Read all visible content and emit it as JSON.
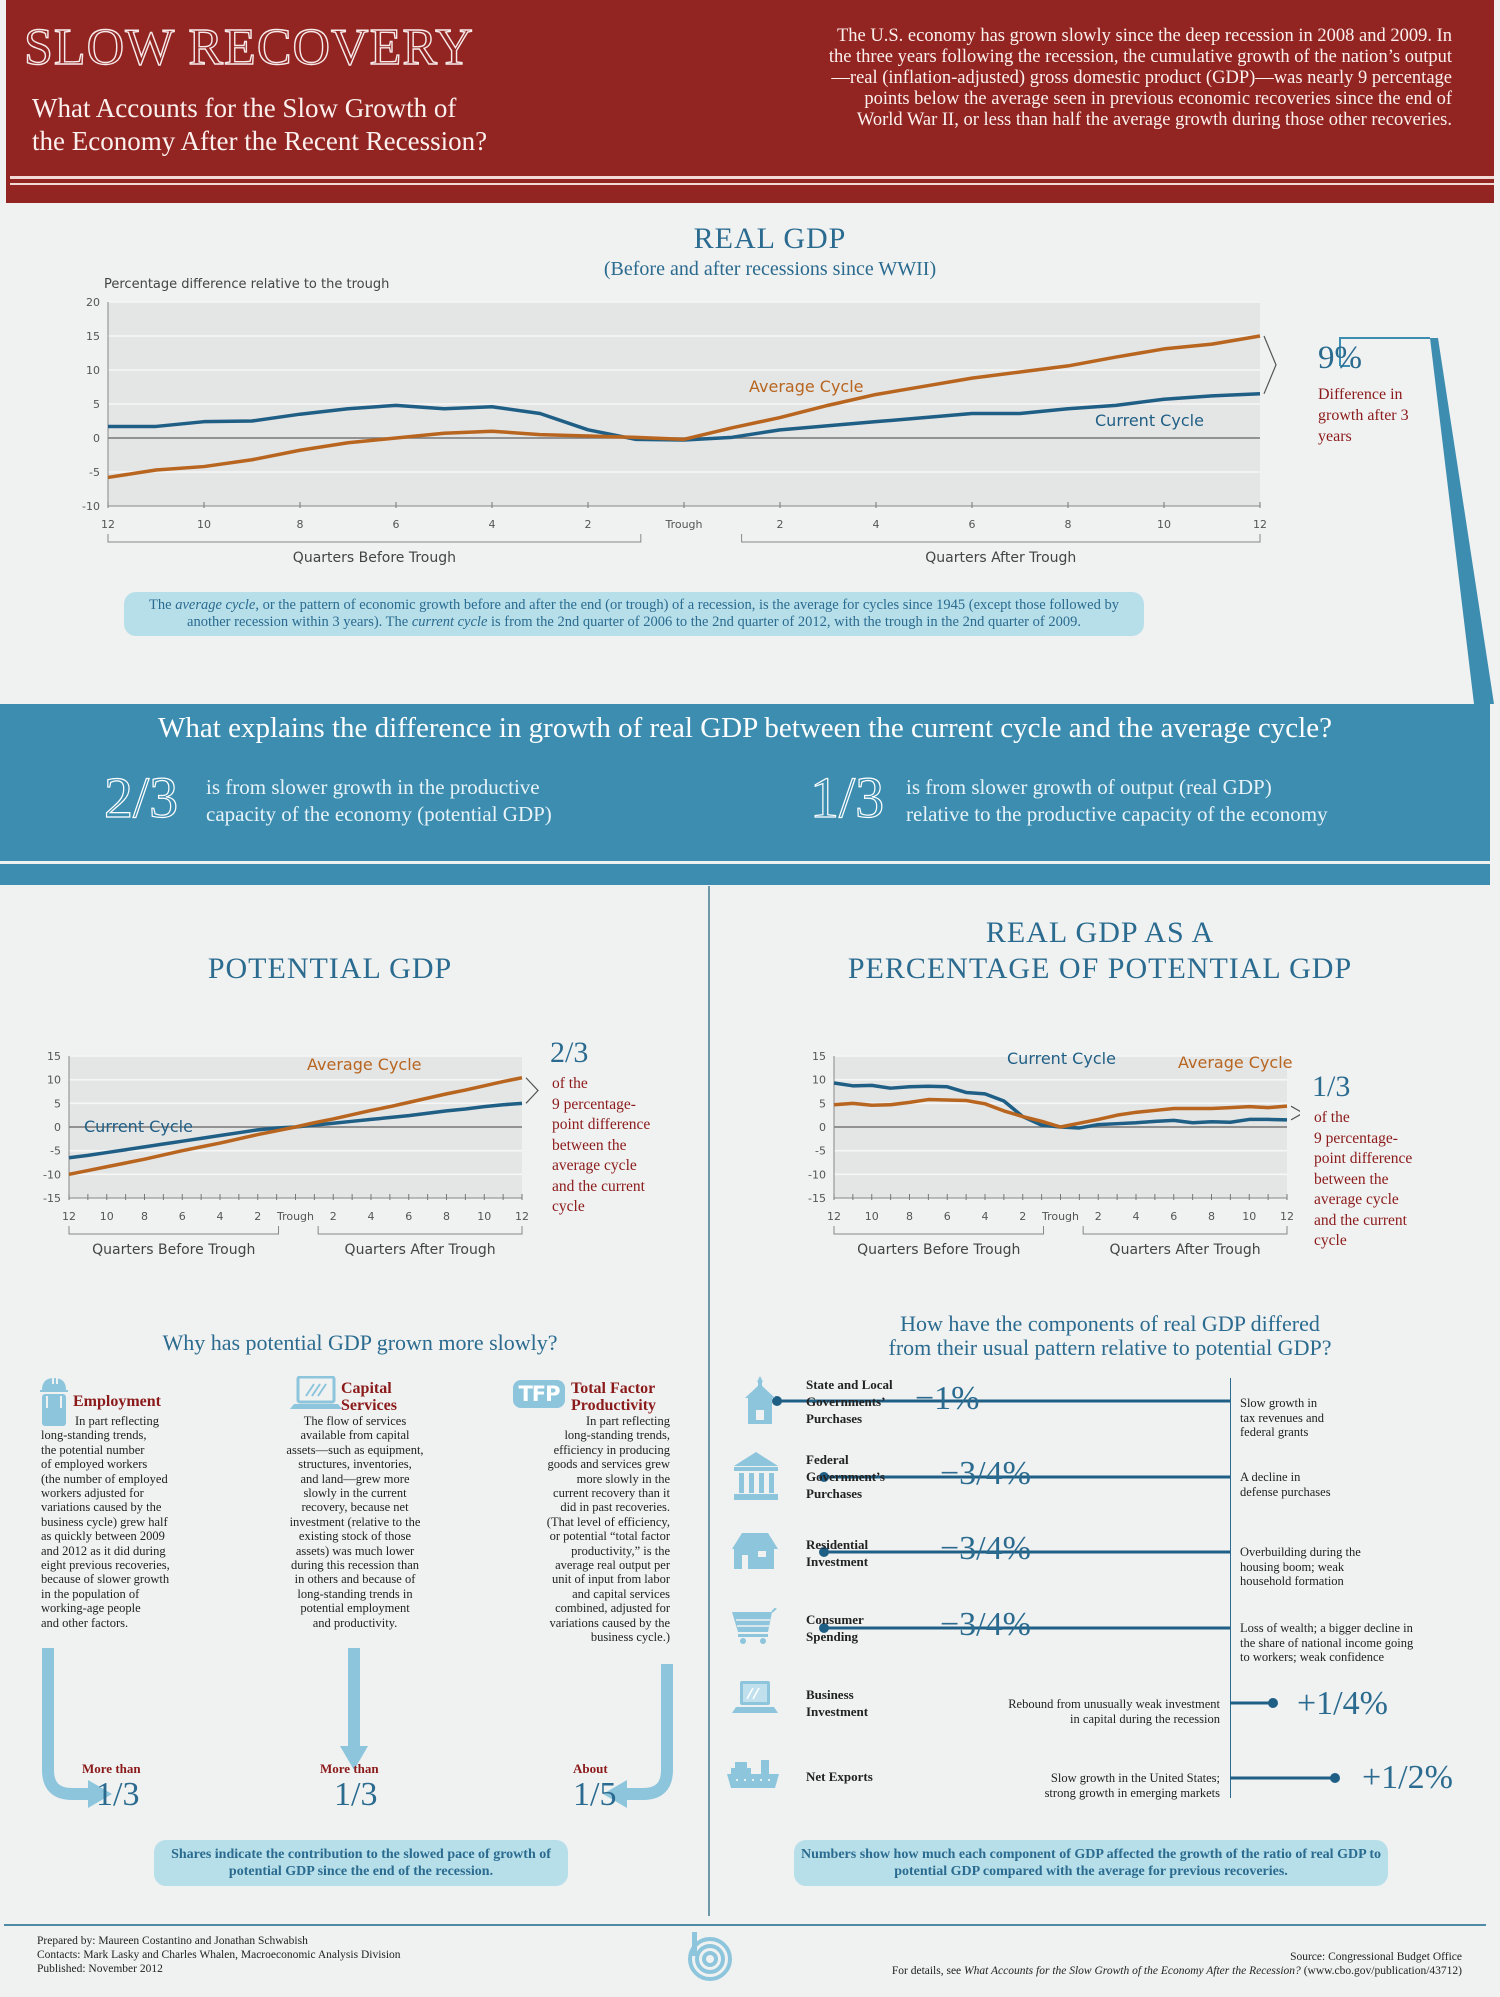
{
  "header": {
    "title": "SLOW RECOVERY",
    "subtitle_line1": "What Accounts for the Slow Growth of",
    "subtitle_line2": "the Economy After the Recent Recession?",
    "intro": "The U.S. economy has grown slowly since the deep recession in 2008 and 2009. In the three years following the recession, the cumulative growth of the nation’s output—real (inflation-adjusted) gross domestic product (GDP)—was nearly 9 percentage points below the average seen in previous economic recoveries since the end of World War II, or less than half the average growth during those other recoveries.",
    "colors": {
      "header_bg": "#922522",
      "accent_blue": "#3d8db0",
      "title_blue": "#2a6b8f",
      "red_text": "#8b1a1a"
    }
  },
  "real_gdp_section": {
    "title": "REAL GDP",
    "subtitle": "(Before and after recessions since WWII)",
    "callout_value": "9%",
    "callout_text": "Difference in growth after 3 years",
    "note_part1": "The ",
    "note_em1": "average cycle",
    "note_part2": ", or the pattern of economic growth before and after the end (or trough) of a recession, is the average for cycles since 1945 (except those followed by another recession within 3 years). The ",
    "note_em2": "current cycle",
    "note_part3": " is from the 2nd quarter of 2006 to the 2nd quarter of 2012, with the trough in the 2nd quarter of 2009."
  },
  "band": {
    "question": "What explains the difference in growth of real GDP between the current cycle and the average cycle?",
    "left_fraction": "2/3",
    "left_text_line1": "is from slower growth in the productive",
    "left_text_line2": "capacity of the economy (potential GDP)",
    "right_fraction": "1/3",
    "right_text_line1": "is from slower growth of output (real GDP)",
    "right_text_line2": "relative to the productive capacity of the economy"
  },
  "potential_section": {
    "title": "POTENTIAL GDP",
    "callout_value": "2/3",
    "callout_text_lines": [
      "of the",
      "9 percentage-",
      "point difference",
      "between the",
      "average cycle",
      "and the current",
      "cycle"
    ]
  },
  "ratio_section": {
    "title_line1": "REAL GDP AS A",
    "title_line2": "PERCENTAGE OF POTENTIAL GDP",
    "callout_value": "1/3",
    "callout_text_lines": [
      "of the",
      "9 percentage-",
      "point difference",
      "between the",
      "average cycle",
      "and the current",
      "cycle"
    ]
  },
  "why_section": {
    "title": "Why has potential GDP grown more slowly?",
    "columns": [
      {
        "icon": "worker-icon",
        "heading_lines": [
          "Employment"
        ],
        "body_lines": [
          "In part reflecting",
          "long-standing trends,",
          "the potential number",
          "of employed workers",
          "(the number of employed",
          "workers adjusted for",
          "variations caused by the",
          "business cycle) grew half",
          "as quickly between 2009",
          "and 2012 as it did during",
          "eight previous recoveries,",
          "because of slower growth",
          "in the population of",
          "working-age people",
          "and other factors."
        ],
        "share_prefix": "More than",
        "share_value": "1/3"
      },
      {
        "icon": "laptop-icon",
        "heading_lines": [
          "Capital",
          "Services"
        ],
        "body_lines": [
          "The flow of services",
          "available from capital",
          "assets—such as equipment,",
          "structures, inventories,",
          "and land—grew more",
          "slowly in the current",
          "recovery, because net",
          "investment (relative to the",
          "existing stock of those",
          "assets) was much lower",
          "during this recession than",
          "in others and because of",
          "long-standing trends in",
          "potential employment",
          "and productivity."
        ],
        "share_prefix": "More than",
        "share_value": "1/3"
      },
      {
        "icon": "tfp-icon",
        "icon_text": "TFP",
        "heading_lines": [
          "Total Factor",
          "Productivity"
        ],
        "body_lines": [
          "In part reflecting",
          "long-standing trends,",
          "efficiency in producing",
          "goods and services grew",
          "more slowly in the",
          "current recovery than it",
          "did in past recoveries.",
          "(That level of efficiency,",
          "or potential “total factor",
          "productivity,” is the",
          "average real output per",
          "unit of input from labor",
          "and capital services",
          "combined, adjusted for",
          "variations caused by the",
          "business cycle.)"
        ],
        "share_prefix": "About",
        "share_value": "1/5"
      }
    ],
    "note": "Shares indicate the contribution to the slowed pace of growth of potential GDP since the end of the recession."
  },
  "components_section": {
    "title_line1": "How have the components of real GDP differed",
    "title_line2": "from their usual pattern relative to potential GDP?",
    "items": [
      {
        "icon": "schoolhouse-icon",
        "label_lines": [
          "State and Local",
          "Governments’",
          "Purchases"
        ],
        "value": "−1%",
        "numeric": -1.0,
        "desc_lines": [
          "Slow growth in",
          "tax revenues and",
          "federal grants"
        ]
      },
      {
        "icon": "capitol-icon",
        "label_lines": [
          "Federal",
          "Government’s",
          "Purchases"
        ],
        "value": "−3/4%",
        "numeric": -0.75,
        "desc_lines": [
          "A decline in",
          "defense purchases"
        ]
      },
      {
        "icon": "house-icon",
        "label_lines": [
          "Residential",
          "Investment"
        ],
        "value": "−3/4%",
        "numeric": -0.75,
        "desc_lines": [
          "Overbuilding during the",
          "housing boom; weak",
          "household formation"
        ]
      },
      {
        "icon": "cart-icon",
        "label_lines": [
          "Consumer",
          "Spending"
        ],
        "value": "−3/4%",
        "numeric": -0.75,
        "desc_lines": [
          "Loss of wealth; a bigger decline in",
          "the share of national income going",
          "to workers; weak confidence"
        ]
      },
      {
        "icon": "laptop-icon",
        "label_lines": [
          "Business",
          "Investment"
        ],
        "value": "+1/4%",
        "numeric": 0.25,
        "desc_lines": [
          "Rebound from unusually weak investment",
          "in capital during the recession"
        ]
      },
      {
        "icon": "ship-icon",
        "label_lines": [
          "Net Exports"
        ],
        "value": "+1/2%",
        "numeric": 0.5,
        "desc_lines": [
          "Slow growth in the United States;",
          "strong growth in emerging markets"
        ]
      }
    ],
    "note": "Numbers show how much each component of GDP affected the growth of the ratio of real GDP to potential GDP compared with the average for previous recoveries."
  },
  "footer": {
    "prepared": "Prepared by: Maureen Costantino and Jonathan Schwabish",
    "contacts": "Contacts: Mark Lasky and Charles Whalen, Macroeconomic Analysis Division",
    "published": "Published: November 2012",
    "source": "Source: Congressional Budget Office",
    "details_prefix": "For details, see ",
    "details_title": "What Accounts for the Slow Growth of the Economy After the Recession?",
    "details_suffix": " (www.cbo.gov/publication/43712)"
  },
  "chart_data": [
    {
      "type": "line",
      "title": "REAL GDP",
      "ylabel": "Percentage difference relative to the trough",
      "xlabel_left": "Quarters Before Trough",
      "xlabel_right": "Quarters After Trough",
      "x": [
        -12,
        -11,
        -10,
        -9,
        -8,
        -7,
        -6,
        -5,
        -4,
        -3,
        -2,
        -1,
        0,
        1,
        2,
        3,
        4,
        5,
        6,
        7,
        8,
        9,
        10,
        11,
        12
      ],
      "x_tick_values": [
        -12,
        -10,
        -8,
        -6,
        -4,
        -2,
        0,
        2,
        4,
        6,
        8,
        10,
        12
      ],
      "x_tick_labels": [
        "12",
        "10",
        "8",
        "6",
        "4",
        "2",
        "Trough",
        "2",
        "4",
        "6",
        "8",
        "10",
        "12"
      ],
      "y_ticks": [
        20,
        15,
        10,
        5,
        0,
        -5,
        -10
      ],
      "ylim": [
        -10,
        20
      ],
      "grid": true,
      "series": [
        {
          "name": "Current Cycle",
          "color": "#1f5f86",
          "values": [
            1.7,
            1.7,
            2.4,
            2.5,
            3.5,
            4.3,
            4.8,
            4.3,
            4.6,
            3.6,
            1.2,
            -0.2,
            -0.3,
            0.1,
            1.2,
            1.8,
            2.4,
            3.0,
            3.6,
            3.6,
            4.3,
            4.8,
            5.7,
            6.2,
            6.5
          ]
        },
        {
          "name": "Average Cycle",
          "color": "#b8651f",
          "values": [
            -5.8,
            -4.7,
            -4.2,
            -3.2,
            -1.8,
            -0.7,
            0.0,
            0.7,
            1.0,
            0.5,
            0.3,
            0.1,
            -0.2,
            1.5,
            3.0,
            4.8,
            6.4,
            7.6,
            8.8,
            9.7,
            10.6,
            11.9,
            13.1,
            13.8,
            15.0
          ]
        }
      ],
      "annotation": "9%"
    },
    {
      "type": "line",
      "title": "POTENTIAL GDP",
      "xlabel_left": "Quarters Before Trough",
      "xlabel_right": "Quarters After Trough",
      "x": [
        -12,
        -11,
        -10,
        -9,
        -8,
        -7,
        -6,
        -5,
        -4,
        -3,
        -2,
        -1,
        0,
        1,
        2,
        3,
        4,
        5,
        6,
        7,
        8,
        9,
        10,
        11,
        12
      ],
      "x_tick_values": [
        -12,
        -10,
        -8,
        -6,
        -4,
        -2,
        0,
        2,
        4,
        6,
        8,
        10,
        12
      ],
      "x_tick_labels": [
        "12",
        "10",
        "8",
        "6",
        "4",
        "2",
        "Trough",
        "2",
        "4",
        "6",
        "8",
        "10",
        "12"
      ],
      "y_ticks": [
        15,
        10,
        5,
        0,
        -5,
        -10,
        -15
      ],
      "ylim": [
        -15,
        15
      ],
      "grid": true,
      "series": [
        {
          "name": "Current Cycle",
          "color": "#1f5f86",
          "values": [
            -6.5,
            -6.0,
            -5.4,
            -4.8,
            -4.2,
            -3.6,
            -3.0,
            -2.4,
            -1.8,
            -1.2,
            -0.6,
            -0.2,
            0.0,
            0.4,
            0.8,
            1.2,
            1.6,
            2.0,
            2.4,
            2.9,
            3.4,
            3.8,
            4.3,
            4.7,
            5.0
          ]
        },
        {
          "name": "Average Cycle",
          "color": "#b8651f",
          "values": [
            -10.0,
            -9.2,
            -8.4,
            -7.6,
            -6.8,
            -5.9,
            -5.0,
            -4.2,
            -3.4,
            -2.5,
            -1.6,
            -0.8,
            0.0,
            0.9,
            1.7,
            2.6,
            3.5,
            4.3,
            5.2,
            6.1,
            7.0,
            7.8,
            8.7,
            9.6,
            10.4
          ]
        }
      ],
      "annotation": "2/3"
    },
    {
      "type": "line",
      "title": "REAL GDP AS A PERCENTAGE OF POTENTIAL GDP",
      "xlabel_left": "Quarters Before Trough",
      "xlabel_right": "Quarters After Trough",
      "x": [
        -12,
        -11,
        -10,
        -9,
        -8,
        -7,
        -6,
        -5,
        -4,
        -3,
        -2,
        -1,
        0,
        1,
        2,
        3,
        4,
        5,
        6,
        7,
        8,
        9,
        10,
        11,
        12
      ],
      "x_tick_values": [
        -12,
        -10,
        -8,
        -6,
        -4,
        -2,
        0,
        2,
        4,
        6,
        8,
        10,
        12
      ],
      "x_tick_labels": [
        "12",
        "10",
        "8",
        "6",
        "4",
        "2",
        "Trough",
        "2",
        "4",
        "6",
        "8",
        "10",
        "12"
      ],
      "y_ticks": [
        15,
        10,
        5,
        0,
        -5,
        -10,
        -15
      ],
      "ylim": [
        -15,
        15
      ],
      "grid": true,
      "series": [
        {
          "name": "Current Cycle",
          "color": "#1f5f86",
          "values": [
            9.3,
            8.7,
            8.8,
            8.2,
            8.5,
            8.6,
            8.5,
            7.3,
            7.0,
            5.5,
            2.2,
            0.4,
            0.0,
            -0.2,
            0.5,
            0.7,
            0.9,
            1.2,
            1.4,
            0.9,
            1.1,
            1.0,
            1.6,
            1.6,
            1.5
          ]
        },
        {
          "name": "Average Cycle",
          "color": "#b8651f",
          "values": [
            4.7,
            5.0,
            4.6,
            4.7,
            5.2,
            5.8,
            5.7,
            5.6,
            4.9,
            3.4,
            2.2,
            1.2,
            0.0,
            0.8,
            1.6,
            2.5,
            3.1,
            3.5,
            3.9,
            3.9,
            3.9,
            4.1,
            4.3,
            4.1,
            4.4
          ]
        }
      ],
      "annotation": "1/3"
    }
  ]
}
